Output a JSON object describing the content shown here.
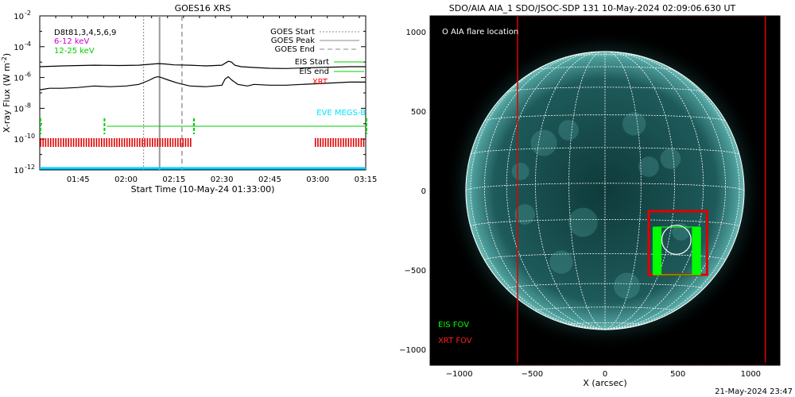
{
  "chart_data": [
    {
      "type": "line",
      "title": "GOES16 XRS",
      "xlabel": "Start Time (10-May-24 01:33:00)",
      "ylabel": "X-ray Flux (W m",
      "ylabel_sup": "-2",
      "ylabel_close": ")",
      "ylog": true,
      "ylim_exp": [
        -12,
        -2
      ],
      "yticks_exp": [
        -12,
        -10,
        -8,
        -6,
        -4,
        -2
      ],
      "ytick_labels": [
        "10",
        "10",
        "10",
        "10",
        "10",
        "10"
      ],
      "ytick_sups": [
        "-12",
        "-10",
        "-8",
        "-6",
        "-4",
        "-2"
      ],
      "xlim_min": [
        93,
        195
      ],
      "xticks_min": [
        105,
        120,
        135,
        150,
        165,
        180,
        195
      ],
      "xtick_labels": [
        "01:45",
        "02:00",
        "02:15",
        "02:30",
        "02:45",
        "03:00",
        "03:15"
      ],
      "lines_left": [
        "D8t81,3,4,5,6,9",
        "6-12 keV",
        "12-25 keV"
      ],
      "lines_left_colors": [
        "#000000",
        "#cc00cc",
        "#00cc00"
      ],
      "legend_right": [
        "GOES Start",
        "GOES Peak",
        "GOES End"
      ],
      "legend_right2": [
        "EIS Start",
        "EIS end",
        "XRT"
      ],
      "legend_right2_colors": [
        "#000000",
        "#000000",
        "#ff0000"
      ],
      "eve_label": "EVE MEGS-B",
      "goes_start_min": 125.5,
      "goes_peak_min": 130.5,
      "goes_end_min": 137.5,
      "series": [
        {
          "color": "#000000",
          "x": [
            93,
            100,
            110,
            118,
            124,
            127,
            130,
            132,
            135,
            140,
            145,
            150,
            152,
            153,
            154,
            156,
            160,
            165,
            170,
            180,
            190,
            195
          ],
          "y_exp": [
            -5.3,
            -5.25,
            -5.2,
            -5.22,
            -5.2,
            -5.15,
            -5.1,
            -5.12,
            -5.18,
            -5.2,
            -5.25,
            -5.2,
            -4.95,
            -5.0,
            -5.2,
            -5.3,
            -5.35,
            -5.4,
            -5.42,
            -5.35,
            -5.3,
            -5.3
          ]
        },
        {
          "color": "#000000",
          "x": [
            93,
            96,
            100,
            105,
            110,
            115,
            120,
            124,
            127,
            129,
            130,
            131,
            133,
            136,
            140,
            145,
            150,
            151,
            152,
            153,
            155,
            158,
            160,
            165,
            170,
            175,
            180,
            185,
            190,
            195
          ],
          "y_exp": [
            -6.8,
            -6.7,
            -6.7,
            -6.65,
            -6.55,
            -6.6,
            -6.55,
            -6.45,
            -6.2,
            -6.0,
            -5.95,
            -6.0,
            -6.15,
            -6.35,
            -6.55,
            -6.6,
            -6.5,
            -6.1,
            -5.95,
            -6.15,
            -6.45,
            -6.55,
            -6.45,
            -6.5,
            -6.5,
            -6.45,
            -6.4,
            -6.35,
            -6.3,
            -6.3
          ]
        }
      ],
      "eis_x": [
        93,
        95,
        113,
        114,
        195
      ],
      "xrt_x": [
        93,
        141,
        179,
        195
      ]
    },
    {
      "type": "scatter",
      "title": "SDO/AIA AIA_1 SDO/JSOC-SDP 131 10-May-2024 02:09:06.630 UT",
      "xlabel": "X (arcsec)",
      "xlim": [
        -1200,
        1200
      ],
      "ylim": [
        -1100,
        1100
      ],
      "xticks": [
        -1000,
        -500,
        0,
        500,
        1000
      ],
      "xtick_labels": [
        "−1000",
        "−500",
        "0",
        "500",
        "1000"
      ],
      "yticks": [
        -1000,
        -500,
        0,
        500,
        1000
      ],
      "ytick_labels": [
        "−1000",
        "−500",
        "0",
        "500",
        "1000"
      ],
      "flare_label": "O AIA flare location",
      "eis_fov_label": "EIS FOV",
      "xrt_fov_label": "XRT FOV",
      "solar_radius": 955,
      "flare_center": [
        490,
        -310
      ],
      "flare_radius": 100,
      "xrt_large_box": [
        -600,
        1100,
        1100,
        -1100
      ],
      "xrt_small_box": [
        300,
        700,
        -130,
        -530
      ],
      "eis_box": [
        335,
        650,
        -230,
        -530
      ],
      "timestamp": "21-May-2024 23:47"
    }
  ]
}
